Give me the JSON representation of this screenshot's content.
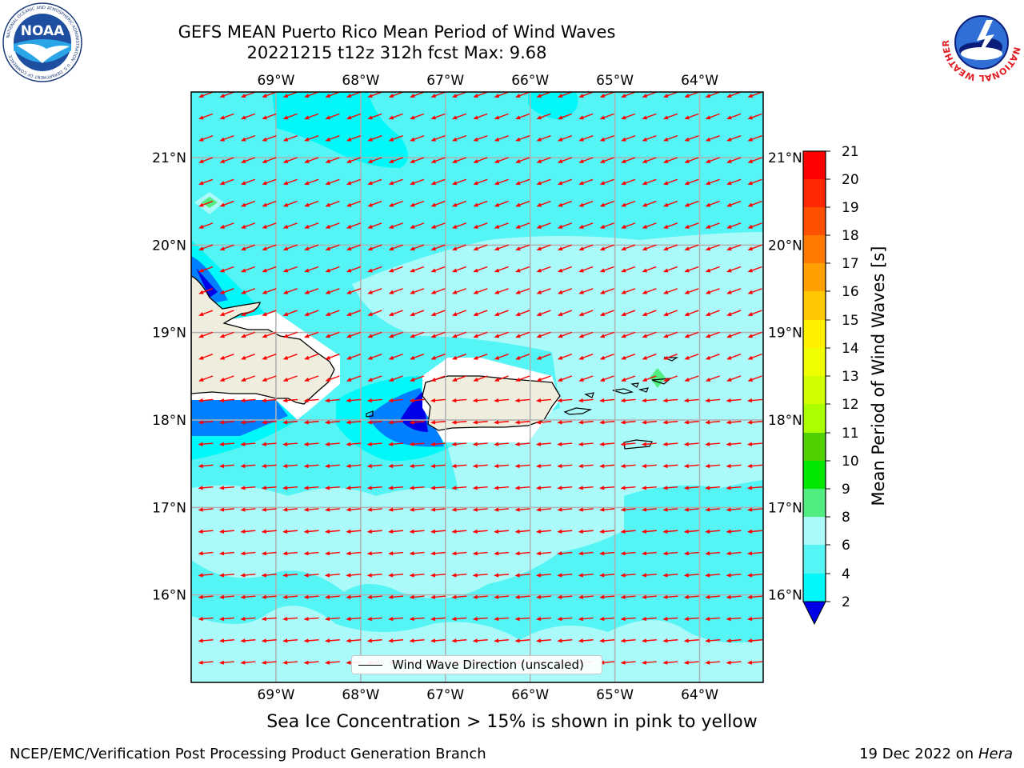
{
  "title": {
    "line1": "GEFS MEAN Puerto Rico Mean Period of Wind Waves",
    "line2": "20221215 t12z 312h fcst   Max: 9.68"
  },
  "logos": {
    "noaa": {
      "text": "NOAA",
      "ring_text": "NATIONAL OCEANIC AND ATMOSPHERIC ADMINISTRATION · U.S. DEPARTMENT OF COMMERCE"
    },
    "nws": {
      "ring_text": "NATIONAL WEATHER SERVICE"
    }
  },
  "map": {
    "lon_ticks": [
      "69°W",
      "68°W",
      "67°W",
      "66°W",
      "65°W",
      "64°W"
    ],
    "lat_ticks": [
      "21°N",
      "20°N",
      "19°N",
      "18°N",
      "17°N",
      "16°N"
    ],
    "lon_range": [
      -70,
      -63.25
    ],
    "lat_range": [
      15,
      21.75
    ],
    "grid": true,
    "arrow_color": "#ff0000",
    "arrow_direction": "toward southwest (westward flow)",
    "land_color": "#efedde"
  },
  "legend": {
    "label": "Wind Wave Direction (unscaled)"
  },
  "colorbar": {
    "label": "Mean Period of Wind Waves [s]",
    "ticks": [
      "21",
      "20",
      "19",
      "18",
      "17",
      "16",
      "15",
      "14",
      "13",
      "12",
      "11",
      "10",
      "9",
      "8",
      "6",
      "4",
      "2"
    ],
    "colors": [
      "#ff0000",
      "#ff2800",
      "#ff5000",
      "#ff7800",
      "#ffa000",
      "#ffc800",
      "#fff000",
      "#f0ff00",
      "#d2ff00",
      "#aaff00",
      "#50d000",
      "#00e800",
      "#50ee80",
      "#aafafa",
      "#55f5f5",
      "#00f8f8",
      "#0080ff",
      "#0000e8"
    ],
    "under_color": "#0000e8"
  },
  "subcaption": "Sea Ice Concentration > 15% is shown in pink to yellow",
  "footer": {
    "left": "NCEP/EMC/Verification Post Processing Product Generation Branch",
    "right_date": "19 Dec 2022 on",
    "right_host": "Hera"
  }
}
